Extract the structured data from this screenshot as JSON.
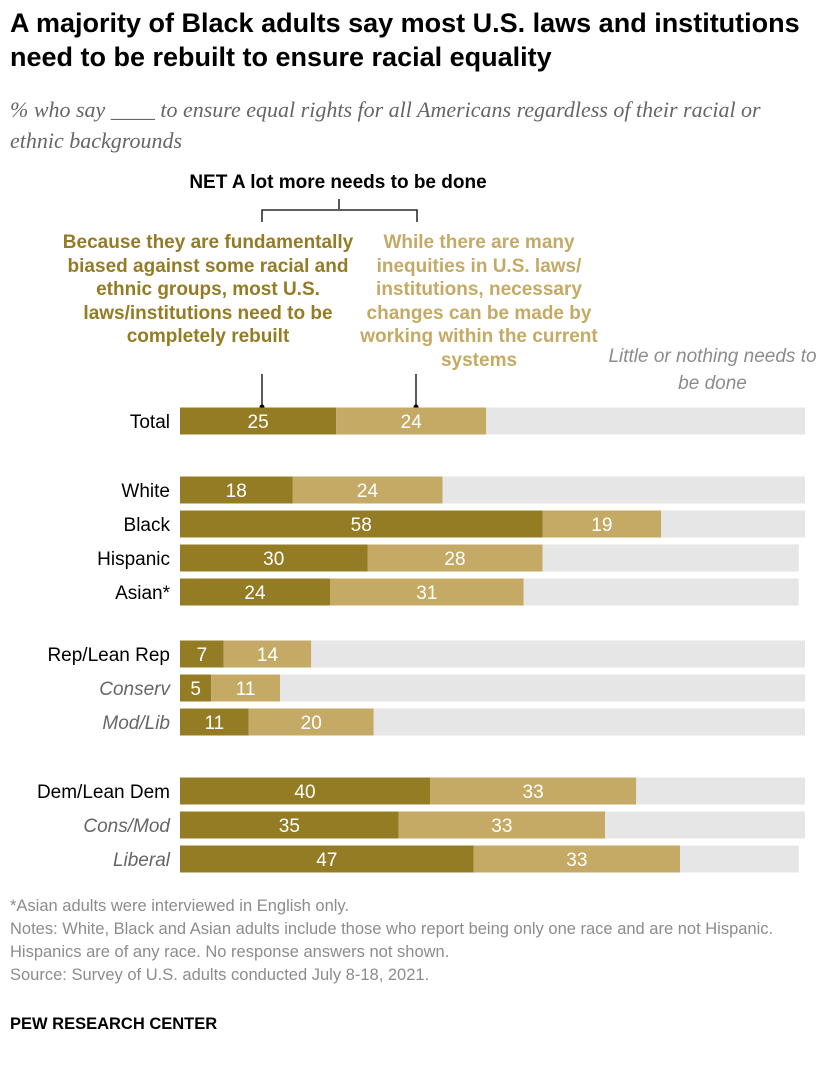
{
  "title": "A majority of Black adults say most U.S. laws and institutions need to be rebuilt to ensure racial equality",
  "subtitle": "% who say ____ to ensure equal rights for all Americans regardless of their racial or ethnic backgrounds",
  "net_header": "NET A lot more needs to be done",
  "legend": {
    "dark": "Because they are fundamentally biased against some racial and ethnic groups, most U.S. laws/institutions need to be completely rebuilt",
    "light": "While there are many inequities in U.S. laws/ institutions, necessary changes can be made by working within the current systems",
    "gray": "Little or nothing needs to be done"
  },
  "notes": {
    "asterisk": "*Asian adults were interviewed in English only.",
    "notes": "Notes: White, Black and Asian adults include those who report being only one race and are not Hispanic. Hispanics are of any race. No response answers not shown.",
    "source": "Source: Survey of U.S. adults conducted July 8-18, 2021."
  },
  "org": "PEW RESEARCH CENTER",
  "colors": {
    "rebuilt": "#947c24",
    "within": "#c4aa64",
    "little": "#e6e6e6",
    "label_italic": "#666666"
  },
  "chart_data": {
    "type": "bar",
    "orientation": "horizontal",
    "stacked": true,
    "xlim": [
      0,
      100
    ],
    "series": [
      {
        "name": "Because they are fundamentally biased against some racial and ethnic groups, most U.S. laws/institutions need to be completely rebuilt",
        "values": [
          25,
          18,
          58,
          30,
          24,
          7,
          5,
          11,
          40,
          35,
          47
        ]
      },
      {
        "name": "While there are many inequities in U.S. laws/ institutions, necessary changes can be made by working within the current systems",
        "values": [
          24,
          24,
          19,
          28,
          31,
          14,
          11,
          20,
          33,
          33,
          33
        ]
      },
      {
        "name": "Little or nothing needs to be done",
        "values": [
          51,
          58,
          23,
          41,
          44,
          79,
          84,
          69,
          27,
          32,
          19
        ]
      }
    ],
    "categories": [
      {
        "label": "Total",
        "italic": false
      },
      {
        "label": "White",
        "italic": false
      },
      {
        "label": "Black",
        "italic": false
      },
      {
        "label": "Hispanic",
        "italic": false
      },
      {
        "label": "Asian*",
        "italic": false
      },
      {
        "label": "Rep/Lean Rep",
        "italic": false
      },
      {
        "label": "Conserv",
        "italic": true
      },
      {
        "label": "Mod/Lib",
        "italic": true
      },
      {
        "label": "Dem/Lean Dem",
        "italic": false
      },
      {
        "label": "Cons/Mod",
        "italic": true
      },
      {
        "label": "Liberal",
        "italic": true
      }
    ]
  }
}
